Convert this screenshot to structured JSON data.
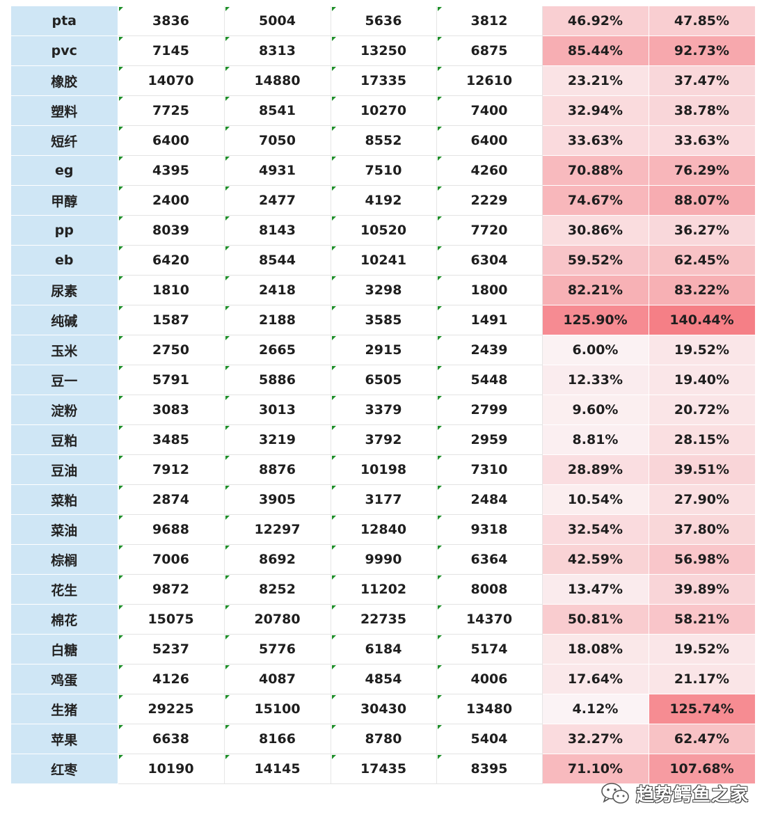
{
  "rows": [
    {
      "name": "pta",
      "c1": "3836",
      "c2": "5004",
      "c3": "5636",
      "c4": "3812",
      "p1": "46.92%",
      "p2": "47.85%"
    },
    {
      "name": "pvc",
      "c1": "7145",
      "c2": "8313",
      "c3": "13250",
      "c4": "6875",
      "p1": "85.44%",
      "p2": "92.73%"
    },
    {
      "name": "橡胶",
      "c1": "14070",
      "c2": "14880",
      "c3": "17335",
      "c4": "12610",
      "p1": "23.21%",
      "p2": "37.47%"
    },
    {
      "name": "塑料",
      "c1": "7725",
      "c2": "8541",
      "c3": "10270",
      "c4": "7400",
      "p1": "32.94%",
      "p2": "38.78%"
    },
    {
      "name": "短纤",
      "c1": "6400",
      "c2": "7050",
      "c3": "8552",
      "c4": "6400",
      "p1": "33.63%",
      "p2": "33.63%"
    },
    {
      "name": "eg",
      "c1": "4395",
      "c2": "4931",
      "c3": "7510",
      "c4": "4260",
      "p1": "70.88%",
      "p2": "76.29%"
    },
    {
      "name": "甲醇",
      "c1": "2400",
      "c2": "2477",
      "c3": "4192",
      "c4": "2229",
      "p1": "74.67%",
      "p2": "88.07%"
    },
    {
      "name": "pp",
      "c1": "8039",
      "c2": "8143",
      "c3": "10520",
      "c4": "7720",
      "p1": "30.86%",
      "p2": "36.27%"
    },
    {
      "name": "eb",
      "c1": "6420",
      "c2": "8544",
      "c3": "10241",
      "c4": "6304",
      "p1": "59.52%",
      "p2": "62.45%"
    },
    {
      "name": "尿素",
      "c1": "1810",
      "c2": "2418",
      "c3": "3298",
      "c4": "1800",
      "p1": "82.21%",
      "p2": "83.22%"
    },
    {
      "name": "纯碱",
      "c1": "1587",
      "c2": "2188",
      "c3": "3585",
      "c4": "1491",
      "p1": "125.90%",
      "p2": "140.44%"
    },
    {
      "name": "玉米",
      "c1": "2750",
      "c2": "2665",
      "c3": "2915",
      "c4": "2439",
      "p1": "6.00%",
      "p2": "19.52%"
    },
    {
      "name": "豆一",
      "c1": "5791",
      "c2": "5886",
      "c3": "6505",
      "c4": "5448",
      "p1": "12.33%",
      "p2": "19.40%"
    },
    {
      "name": "淀粉",
      "c1": "3083",
      "c2": "3013",
      "c3": "3379",
      "c4": "2799",
      "p1": "9.60%",
      "p2": "20.72%"
    },
    {
      "name": "豆粕",
      "c1": "3485",
      "c2": "3219",
      "c3": "3792",
      "c4": "2959",
      "p1": "8.81%",
      "p2": "28.15%"
    },
    {
      "name": "豆油",
      "c1": "7912",
      "c2": "8876",
      "c3": "10198",
      "c4": "7310",
      "p1": "28.89%",
      "p2": "39.51%"
    },
    {
      "name": "菜粕",
      "c1": "2874",
      "c2": "3905",
      "c3": "3177",
      "c4": "2484",
      "p1": "10.54%",
      "p2": "27.90%"
    },
    {
      "name": "菜油",
      "c1": "9688",
      "c2": "12297",
      "c3": "12840",
      "c4": "9318",
      "p1": "32.54%",
      "p2": "37.80%"
    },
    {
      "name": "棕榈",
      "c1": "7006",
      "c2": "8692",
      "c3": "9990",
      "c4": "6364",
      "p1": "42.59%",
      "p2": "56.98%"
    },
    {
      "name": "花生",
      "c1": "9872",
      "c2": "8252",
      "c3": "11202",
      "c4": "8008",
      "p1": "13.47%",
      "p2": "39.89%"
    },
    {
      "name": "棉花",
      "c1": "15075",
      "c2": "20780",
      "c3": "22735",
      "c4": "14370",
      "p1": "50.81%",
      "p2": "58.21%"
    },
    {
      "name": "白糖",
      "c1": "5237",
      "c2": "5776",
      "c3": "6184",
      "c4": "5174",
      "p1": "18.08%",
      "p2": "19.52%"
    },
    {
      "name": "鸡蛋",
      "c1": "4126",
      "c2": "4087",
      "c3": "4854",
      "c4": "4006",
      "p1": "17.64%",
      "p2": "21.17%"
    },
    {
      "name": "生猪",
      "c1": "29225",
      "c2": "15100",
      "c3": "30430",
      "c4": "13480",
      "p1": "4.12%",
      "p2": "125.74%"
    },
    {
      "name": "苹果",
      "c1": "6638",
      "c2": "8166",
      "c3": "8780",
      "c4": "5404",
      "p1": "32.27%",
      "p2": "62.47%"
    },
    {
      "name": "红枣",
      "c1": "10190",
      "c2": "14145",
      "c3": "17435",
      "c4": "8395",
      "p1": "71.10%",
      "p2": "107.68%"
    }
  ],
  "watermark": {
    "text": "趋势鳄鱼之家",
    "icon": "wechat-icon"
  },
  "colors": {
    "name_bg": "#cfe6f5",
    "heat_max": "#f57f86",
    "heat_min": "#fbf7f8",
    "error_flag": "#1f8f2a"
  }
}
